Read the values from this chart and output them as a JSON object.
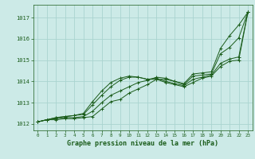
{
  "title": "Graphe pression niveau de la mer (hPa)",
  "background_color": "#cceae7",
  "grid_color": "#aad4d0",
  "line_color": "#1a5c1a",
  "xlim": [
    -0.5,
    23.5
  ],
  "ylim": [
    1011.7,
    1017.6
  ],
  "xticks": [
    0,
    1,
    2,
    3,
    4,
    5,
    6,
    7,
    8,
    9,
    10,
    11,
    12,
    13,
    14,
    15,
    16,
    17,
    18,
    19,
    20,
    21,
    22,
    23
  ],
  "yticks": [
    1012,
    1013,
    1014,
    1015,
    1016,
    1017
  ],
  "series": [
    [
      1012.1,
      1012.2,
      1012.2,
      1012.25,
      1012.25,
      1012.3,
      1012.35,
      1012.7,
      1013.05,
      1013.15,
      1013.45,
      1013.65,
      1013.85,
      1014.1,
      1014.1,
      1014.0,
      1013.9,
      1014.35,
      1014.4,
      1014.45,
      1015.55,
      1016.15,
      1016.65,
      1017.25
    ],
    [
      1012.1,
      1012.2,
      1012.25,
      1012.3,
      1012.3,
      1012.35,
      1012.6,
      1013.0,
      1013.35,
      1013.55,
      1013.75,
      1013.95,
      1014.05,
      1014.2,
      1014.15,
      1014.0,
      1013.85,
      1014.25,
      1014.3,
      1014.35,
      1015.3,
      1015.6,
      1016.05,
      1017.25
    ],
    [
      1012.1,
      1012.2,
      1012.3,
      1012.35,
      1012.4,
      1012.45,
      1012.9,
      1013.35,
      1013.75,
      1014.05,
      1014.2,
      1014.2,
      1014.1,
      1014.15,
      1014.0,
      1013.9,
      1013.8,
      1014.1,
      1014.2,
      1014.3,
      1014.85,
      1015.05,
      1015.15,
      1017.25
    ],
    [
      1012.1,
      1012.2,
      1012.3,
      1012.35,
      1012.4,
      1012.5,
      1013.05,
      1013.55,
      1013.95,
      1014.15,
      1014.25,
      1014.2,
      1014.1,
      1014.1,
      1013.95,
      1013.85,
      1013.75,
      1013.95,
      1014.15,
      1014.25,
      1014.7,
      1014.95,
      1015.0,
      1017.25
    ]
  ]
}
